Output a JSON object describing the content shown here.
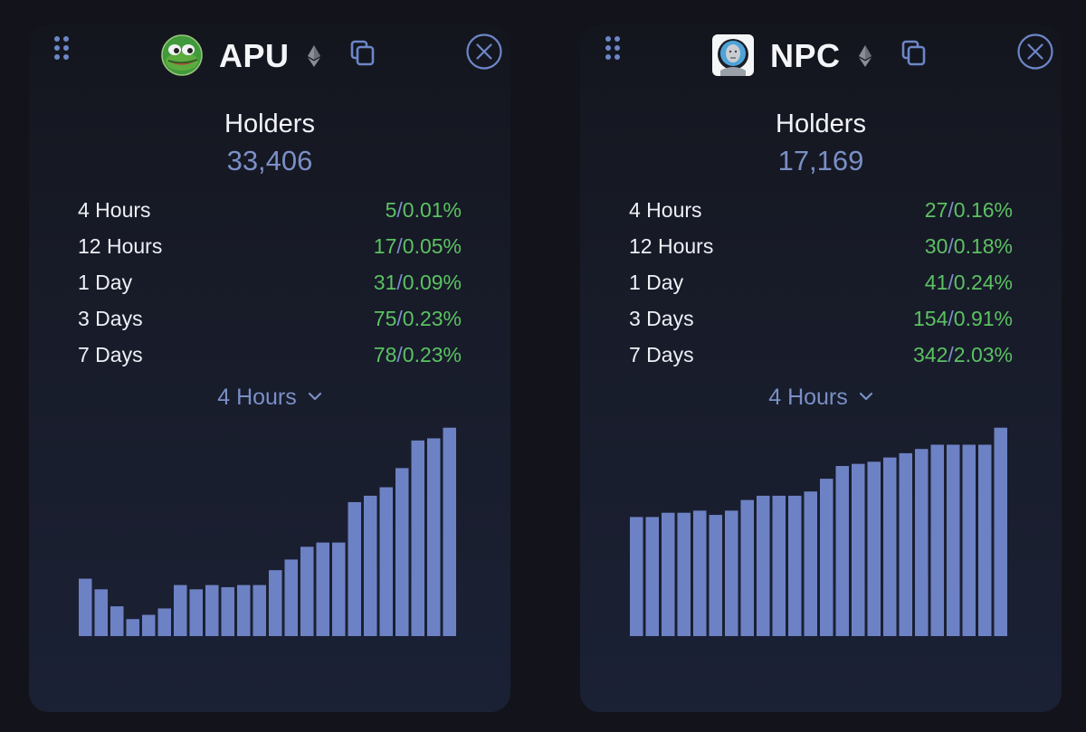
{
  "cards": [
    {
      "token": "APU",
      "logo": "pepe-frog-icon",
      "network_icon": "ethereum-icon",
      "holders_label": "Holders",
      "holders_value": "33,406",
      "stats": [
        {
          "label": "4 Hours",
          "count": "5",
          "percent": "0.01%"
        },
        {
          "label": "12 Hours",
          "count": "17",
          "percent": "0.05%"
        },
        {
          "label": "1 Day",
          "count": "31",
          "percent": "0.09%"
        },
        {
          "label": "3 Days",
          "count": "75",
          "percent": "0.23%"
        },
        {
          "label": "7 Days",
          "count": "78",
          "percent": "0.23%"
        }
      ],
      "period_selected": "4 Hours",
      "chart_data": {
        "type": "bar",
        "title": "",
        "values": [
          27,
          22,
          14,
          8,
          10,
          13,
          24,
          22,
          24,
          23,
          24,
          24,
          31,
          36,
          42,
          44,
          44,
          63,
          66,
          70,
          79,
          92,
          93,
          98
        ],
        "ylim": [
          0,
          100
        ]
      }
    },
    {
      "token": "NPC",
      "logo": "npc-avatar-icon",
      "network_icon": "ethereum-icon",
      "holders_label": "Holders",
      "holders_value": "17,169",
      "stats": [
        {
          "label": "4 Hours",
          "count": "27",
          "percent": "0.16%"
        },
        {
          "label": "12 Hours",
          "count": "30",
          "percent": "0.18%"
        },
        {
          "label": "1 Day",
          "count": "41",
          "percent": "0.24%"
        },
        {
          "label": "3 Days",
          "count": "154",
          "percent": "0.91%"
        },
        {
          "label": "7 Days",
          "count": "342",
          "percent": "2.03%"
        }
      ],
      "period_selected": "4 Hours",
      "chart_data": {
        "type": "bar",
        "title": "",
        "values": [
          56,
          56,
          58,
          58,
          59,
          57,
          59,
          64,
          66,
          66,
          66,
          68,
          74,
          80,
          81,
          82,
          84,
          86,
          88,
          90,
          90,
          90,
          90,
          98
        ],
        "ylim": [
          0,
          100
        ]
      }
    }
  ],
  "colors": {
    "background": "#13141b",
    "accent": "#7a8fc6",
    "bar": "#6d82c4",
    "positive": "#5cc163",
    "text": "#f2f3f7"
  }
}
